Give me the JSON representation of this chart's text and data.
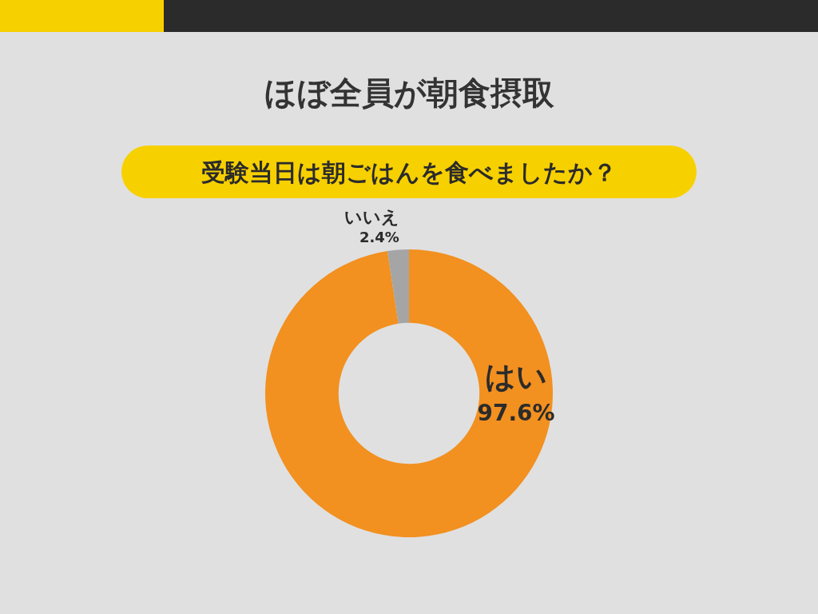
{
  "chart_data": {
    "type": "donut",
    "title": "ほぼ全員が朝食摂取",
    "subtitle": "受験当日は朝ごはんを食べましたか？",
    "categories": [
      "はい",
      "いいえ"
    ],
    "values": [
      97.6,
      2.4
    ],
    "colors": [
      "#f29020",
      "#a5a5a5"
    ],
    "value_labels": [
      "97.6%",
      "2.4%"
    ]
  }
}
